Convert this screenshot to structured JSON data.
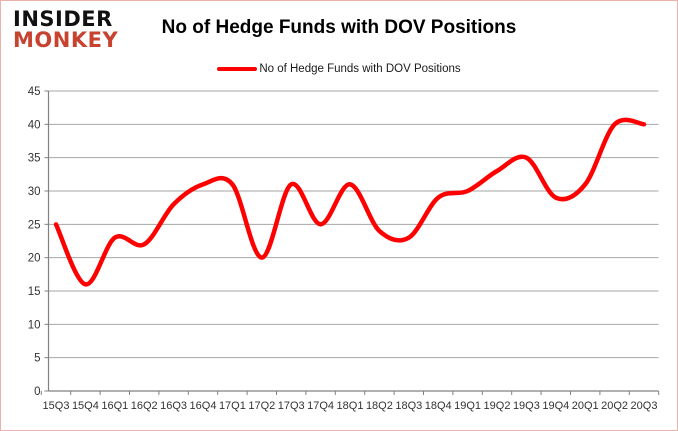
{
  "branding": {
    "line1": "INSIDER",
    "line2": "MONKEY",
    "monkey_color": "#C8432F"
  },
  "header": {
    "title": "No of Hedge Funds with DOV Positions"
  },
  "legend": {
    "label": "No of Hedge Funds with DOV Positions",
    "swatch_color": "#FF0000"
  },
  "chart_data": {
    "type": "line",
    "title": "No of Hedge Funds with DOV Positions",
    "series_name": "No of Hedge Funds with DOV Positions",
    "categories": [
      "15Q3",
      "15Q4",
      "16Q1",
      "16Q2",
      "16Q3",
      "16Q4",
      "17Q1",
      "17Q2",
      "17Q3",
      "17Q4",
      "18Q1",
      "18Q2",
      "18Q3",
      "18Q4",
      "19Q1",
      "19Q2",
      "19Q3",
      "19Q4",
      "20Q1",
      "20Q2",
      "20Q3"
    ],
    "values": [
      25,
      16,
      23,
      22,
      28,
      31,
      31,
      20,
      31,
      25,
      31,
      24,
      23,
      29,
      30,
      33,
      35,
      29,
      31,
      40,
      40
    ],
    "ylim": [
      0,
      45
    ],
    "ytick_step": 5,
    "yticks": [
      0,
      5,
      10,
      15,
      20,
      25,
      30,
      35,
      40,
      45
    ],
    "grid": true,
    "legend_position": "top",
    "line_color": "#FF0000",
    "grid_color": "#a6a6a6",
    "axis_color": "#808080",
    "tick_label_color": "#333333"
  }
}
